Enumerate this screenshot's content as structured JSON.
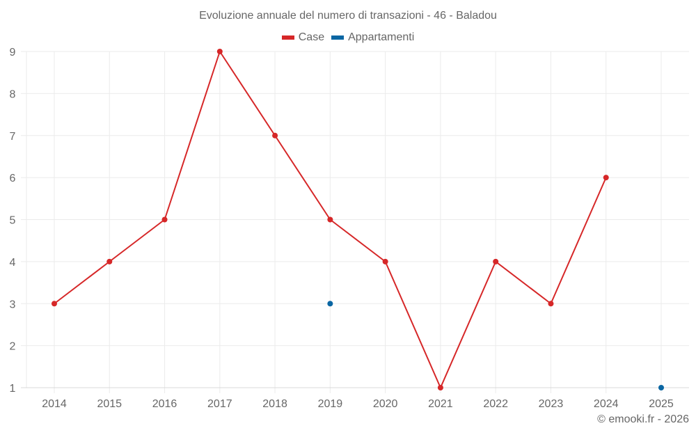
{
  "chart_data": {
    "type": "line",
    "title": "Evoluzione annuale del numero di transazioni - 46 - Baladou",
    "xlabel": "",
    "ylabel": "",
    "categories": [
      "2014",
      "2015",
      "2016",
      "2017",
      "2018",
      "2019",
      "2020",
      "2021",
      "2022",
      "2023",
      "2024",
      "2025"
    ],
    "series": [
      {
        "name": "Case",
        "color": "#d62728",
        "values": [
          3,
          4,
          5,
          9,
          7,
          5,
          4,
          1,
          4,
          3,
          6,
          null
        ]
      },
      {
        "name": "Appartamenti",
        "color": "#0a66a3",
        "values": [
          null,
          null,
          null,
          null,
          null,
          3,
          null,
          null,
          null,
          null,
          null,
          1
        ]
      }
    ],
    "yticks": [
      1,
      2,
      3,
      4,
      5,
      6,
      7,
      8,
      9
    ],
    "ylim": [
      1,
      9
    ],
    "grid": true,
    "legend_position": "top"
  },
  "header": {
    "title": "Evoluzione annuale del numero di transazioni - 46 - Baladou"
  },
  "legend": {
    "items": [
      {
        "label": "Case",
        "color": "#d62728"
      },
      {
        "label": "Appartamenti",
        "color": "#0a66a3"
      }
    ]
  },
  "footer": {
    "credit": "© emooki.fr - 2026"
  }
}
